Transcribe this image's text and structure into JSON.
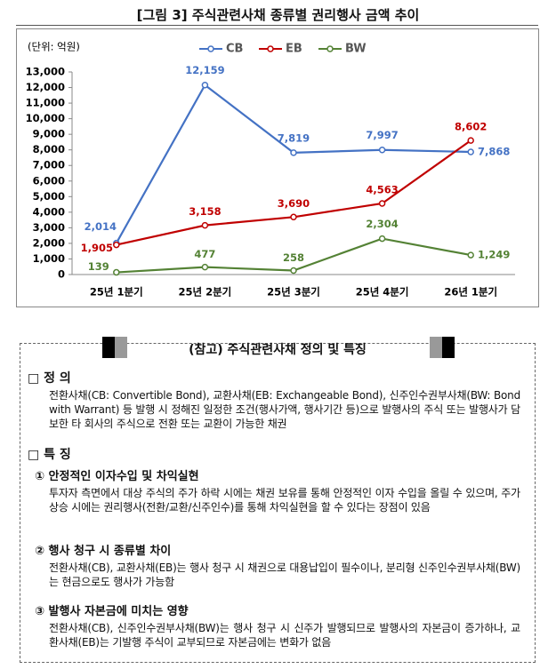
{
  "figure_title": "[그림 3] 주식관련사채 종류별 권리행사 금액 추이",
  "chart_data": {
    "type": "line",
    "unit_label": "(단위: 억원)",
    "categories": [
      "25년 1분기",
      "25년 2분기",
      "25년 3분기",
      "25년 4분기",
      "26년 1분기"
    ],
    "series": [
      {
        "name": "CB",
        "color": "#4472c4",
        "values": [
          2014,
          12159,
          7819,
          7997,
          7868
        ],
        "value_labels": [
          "2,014",
          "12,159",
          "7,819",
          "7,997",
          "7,868"
        ]
      },
      {
        "name": "EB",
        "color": "#c00000",
        "values": [
          1905,
          3158,
          3690,
          4563,
          8602
        ],
        "value_labels": [
          "1,905",
          "3,158",
          "3,690",
          "4,563",
          "8,602"
        ]
      },
      {
        "name": "BW",
        "color": "#548235",
        "values": [
          139,
          477,
          258,
          2304,
          1249
        ],
        "value_labels": [
          "139",
          "477",
          "258",
          "2,304",
          "1,249"
        ]
      }
    ],
    "ylim": [
      0,
      13000
    ],
    "yticks": [
      0,
      {
        "value": 1000,
        "label": "1,000"
      },
      {
        "value": 2000,
        "label": "2,000"
      },
      {
        "value": 3000,
        "label": "3,000"
      },
      {
        "value": 4000,
        "label": "4,000"
      },
      {
        "value": 5000,
        "label": "5,000"
      },
      {
        "value": 6000,
        "label": "6,000"
      },
      {
        "value": 7000,
        "label": "7,000"
      },
      {
        "value": 8000,
        "label": "8,000"
      },
      {
        "value": 9000,
        "label": "9,000"
      },
      {
        "value": 10000,
        "label": "10,000"
      },
      {
        "value": 11000,
        "label": "11,000"
      },
      {
        "value": 12000,
        "label": "12,000"
      },
      {
        "value": 13000,
        "label": "13,000"
      }
    ],
    "grid": false,
    "legend": "top"
  },
  "reference": {
    "title": "(참고) 주식관련사채 정의 및 특징",
    "definition": {
      "heading": "□ 정 의",
      "text": "전환사채(CB: Convertible Bond), 교환사채(EB: Exchangeable Bond), 신주인수권부사채(BW: Bond with Warrant) 등 발행 시 정해진 일정한 조건(행사가액, 행사기간 등)으로 발행사의 주식 또는 발행사가 담보한 타 회사의 주식으로 전환 또는 교환이 가능한 채권"
    },
    "features": {
      "heading": "□ 특 징",
      "items": [
        {
          "title": "① 안정적인 이자수입 및 차익실현",
          "text": "투자자 측면에서 대상 주식의 주가 하락 시에는 채권 보유를 통해 안정적인 이자 수입을 올릴 수 있으며, 주가 상승 시에는 권리행사(전환/교환/신주인수)를 통해 차익실현을 할 수 있다는 장점이 있음"
        },
        {
          "title": "② 행사 청구 시 종류별 차이",
          "text": "전환사채(CB), 교환사채(EB)는 행사 청구 시 채권으로 대용납입이 필수이나, 분리형 신주인수권부사채(BW)는 현금으로도 행사가 가능함"
        },
        {
          "title": "③ 발행사 자본금에 미치는 영향",
          "text": "전환사채(CB), 신주인수권부사채(BW)는 행사 청구 시 신주가 발행되므로 발행사의 자본금이 증가하나, 교환사채(EB)는 기발행 주식이 교부되므로 자본금에는 변화가 없음"
        }
      ]
    }
  }
}
